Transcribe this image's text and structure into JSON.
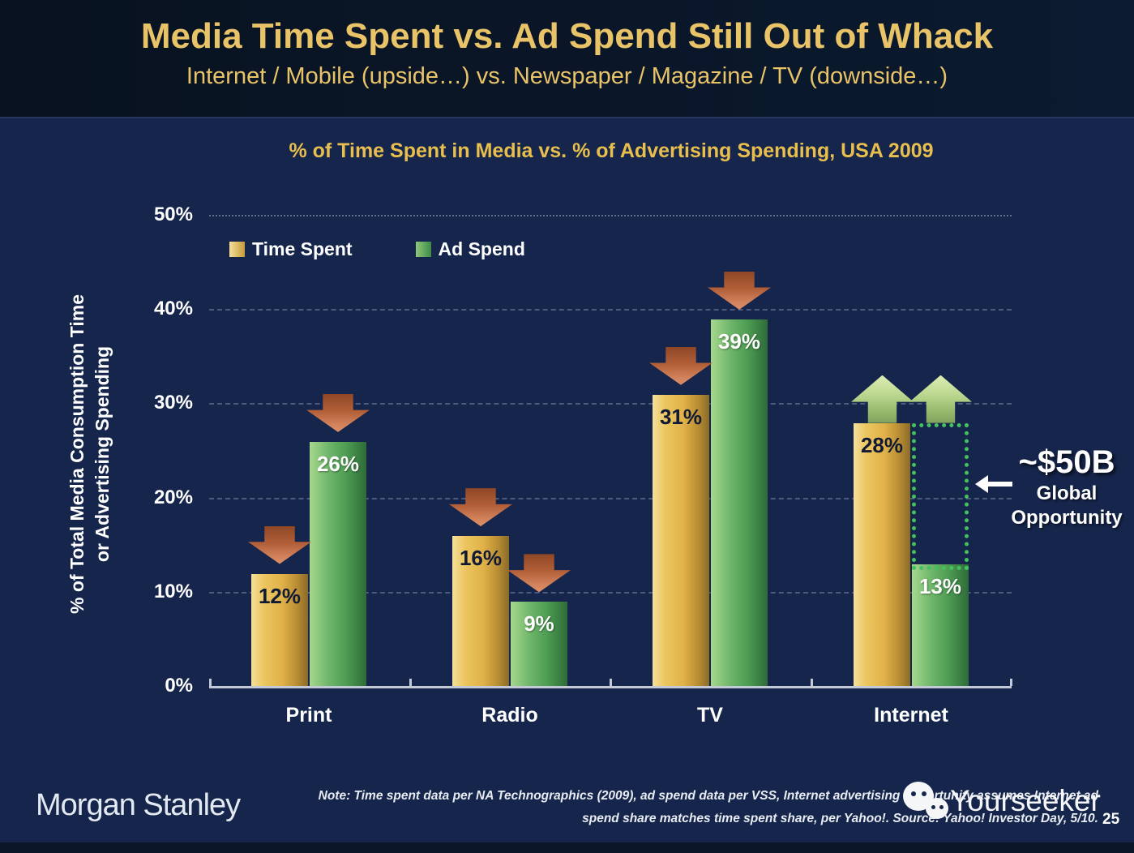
{
  "slide": {
    "title": "Media Time Spent vs. Ad Spend Still Out of Whack",
    "subtitle": "Internet / Mobile (upside…) vs. Newspaper / Magazine / TV (downside…)"
  },
  "chart_data": {
    "type": "bar",
    "title": "% of Time Spent in Media vs. % of Advertising Spending, USA 2009",
    "categories": [
      "Print",
      "Radio",
      "TV",
      "Internet"
    ],
    "series": [
      {
        "name": "Time Spent",
        "values": [
          12,
          16,
          31,
          28
        ],
        "labels": [
          "12%",
          "16%",
          "31%",
          "28%"
        ],
        "trend": [
          "down",
          "down",
          "down",
          "up"
        ],
        "color": "#e0b148",
        "label_style": "dark"
      },
      {
        "name": "Ad Spend",
        "values": [
          26,
          9,
          39,
          13
        ],
        "labels": [
          "26%",
          "9%",
          "39%",
          "13%"
        ],
        "trend": [
          "down",
          "down",
          "down",
          "up"
        ],
        "color": "#4d9c52",
        "label_style": "light"
      }
    ],
    "ylabel_line1": "% of Total Media Consumption Time",
    "ylabel_line2": "or Advertising Spending",
    "yticks": [
      "0%",
      "10%",
      "20%",
      "30%",
      "40%",
      "50%"
    ],
    "ylim": [
      0,
      50
    ],
    "grid": true,
    "legend_position": "top-left-inside"
  },
  "annotation": {
    "value": "~$50B",
    "line1": "Global",
    "line2": "Opportunity",
    "category_index": 3,
    "series_index": 1,
    "box_from": 13,
    "box_to": 28,
    "box_color": "#44c15e"
  },
  "footer": {
    "brand": "Morgan Stanley",
    "note_line1": "Note: Time spent data per NA Technographics (2009), ad spend data per VSS, Internet advertising opportunity assumes Internet ad",
    "note_line2": "spend share matches time spent share, per Yahoo!. Source: Yahoo! Investor Day, 5/10.",
    "watermark": "Yourseeker",
    "page": "25"
  },
  "colors": {
    "header_bg": "#0a1627",
    "body_bg": "#15254b",
    "title_gold": "#e9c368",
    "bar_gold": "#e0b148",
    "bar_green": "#4d9c52",
    "down_arrow": "#c06a43",
    "up_arrow": "#bcd890",
    "opportunity_dots": "#44c15e",
    "axis": "#c2cad8"
  }
}
